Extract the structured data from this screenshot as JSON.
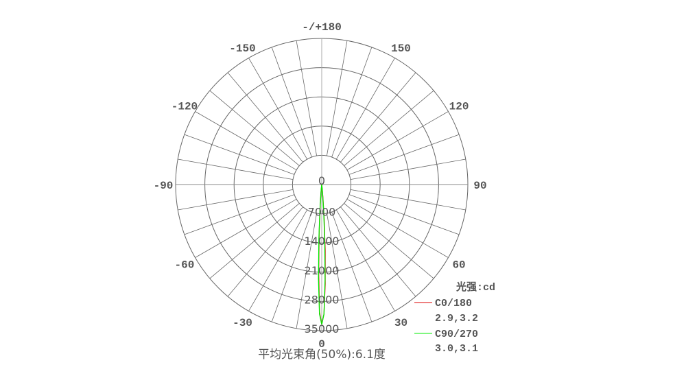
{
  "chart_data": {
    "type": "polar",
    "unit_label": "光强:cd",
    "footer": "平均光束角(50%):6.1度",
    "radial_ticks": [
      "0",
      "7000",
      "14000",
      "21000",
      "28000",
      "35000"
    ],
    "radial_max": 35000,
    "angle_labels": [
      {
        "angle": 180,
        "text": "-/+180"
      },
      {
        "angle": 150,
        "text": "150"
      },
      {
        "angle": -150,
        "text": "-150"
      },
      {
        "angle": 120,
        "text": "120"
      },
      {
        "angle": -120,
        "text": "-120"
      },
      {
        "angle": 90,
        "text": "90"
      },
      {
        "angle": -90,
        "text": "-90"
      },
      {
        "angle": 60,
        "text": "60"
      },
      {
        "angle": -60,
        "text": "-60"
      },
      {
        "angle": 30,
        "text": "30"
      },
      {
        "angle": -30,
        "text": "-30"
      },
      {
        "angle": 0,
        "text": "0"
      }
    ],
    "grid": true,
    "legend_position": "bottom-right",
    "series": [
      {
        "name": "C0/180",
        "beam": "2.9,3.2",
        "color": "#dd0000",
        "angles": [
          -10,
          -8,
          -6,
          -5,
          -4,
          -3,
          -2,
          -1,
          0,
          1,
          2,
          3,
          4,
          5,
          6,
          8,
          10
        ],
        "values": [
          0,
          100,
          900,
          2100,
          5400,
          11800,
          21000,
          30500,
          33500,
          31000,
          23800,
          15800,
          8400,
          3700,
          1400,
          200,
          0
        ]
      },
      {
        "name": "C90/270",
        "beam": "3.0,3.1",
        "color": "#00ee00",
        "angles": [
          -10,
          -8,
          -6,
          -5,
          -4,
          -3,
          -2,
          -1,
          0,
          1,
          2,
          3,
          4,
          5,
          6,
          8,
          10
        ],
        "values": [
          0,
          100,
          1100,
          2600,
          6400,
          13000,
          22500,
          31000,
          33500,
          31000,
          22800,
          13800,
          7000,
          2900,
          1100,
          100,
          0
        ]
      }
    ]
  }
}
